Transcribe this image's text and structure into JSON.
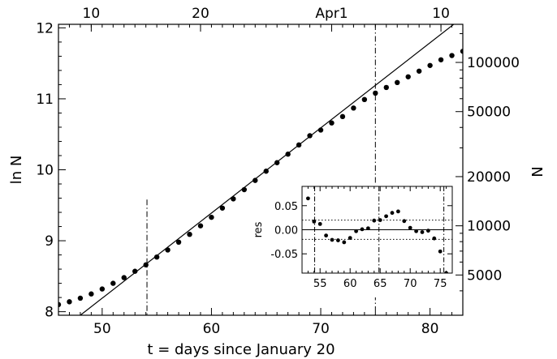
{
  "chart_data": [
    {
      "type": "scatter",
      "title": "",
      "xlabel": "t = days since January 20",
      "ylabel": "ln N",
      "right_ylabel": "N",
      "xlim": [
        46,
        83
      ],
      "ylim": [
        7.95,
        12.05
      ],
      "xticks": [
        50,
        60,
        70,
        80
      ],
      "yticks": [
        8,
        9,
        10,
        11,
        12
      ],
      "right_ticks": [
        {
          "label": "100000",
          "value": 100000
        },
        {
          "label": "50000",
          "value": 50000
        },
        {
          "label": "20000",
          "value": 20000
        },
        {
          "label": "10000",
          "value": 10000
        },
        {
          "label": "5000",
          "value": 5000
        }
      ],
      "top_ticks": [
        {
          "label": "10",
          "x": 49
        },
        {
          "label": "20",
          "x": 59
        },
        {
          "label": "Apr1",
          "x": 71
        },
        {
          "label": "10",
          "x": 81
        }
      ],
      "grid": false,
      "series": [
        {
          "type": "scatter",
          "x": [
            46,
            47,
            48,
            49,
            50,
            51,
            52,
            53,
            54,
            55,
            56,
            57,
            58,
            59,
            60,
            61,
            62,
            63,
            64,
            65,
            66,
            67,
            68,
            69,
            70,
            71,
            72,
            73,
            74,
            75,
            76,
            77,
            78,
            79,
            80,
            81,
            82,
            83
          ],
          "y": [
            8.1,
            8.14,
            8.19,
            8.25,
            8.32,
            8.4,
            8.48,
            8.57,
            8.66,
            8.77,
            8.87,
            8.98,
            9.09,
            9.21,
            9.33,
            9.46,
            9.59,
            9.72,
            9.85,
            9.98,
            10.1,
            10.22,
            10.35,
            10.48,
            10.56,
            10.66,
            10.75,
            10.87,
            10.99,
            11.08,
            11.16,
            11.23,
            11.31,
            11.39,
            11.47,
            11.55,
            11.61,
            11.67
          ]
        },
        {
          "type": "line",
          "x": [
            48,
            83
          ],
          "y": [
            7.95,
            12.15
          ]
        }
      ],
      "vlines": [
        54.1,
        75
      ]
    },
    {
      "type": "scatter",
      "title": "",
      "xlabel": "",
      "ylabel": "res",
      "xlim": [
        52,
        77
      ],
      "ylim": [
        -0.09,
        0.09
      ],
      "xticks": [
        55,
        60,
        65,
        70,
        75
      ],
      "ytick_labels": [
        "0.05",
        "0.00",
        "-0.05"
      ],
      "yticks": [
        0.05,
        0.0,
        -0.05
      ],
      "hlines_dotted": [
        0.02,
        -0.02
      ],
      "hline_solid": 0,
      "vlines": [
        54.1,
        64.8,
        75.6
      ],
      "series": [
        {
          "type": "scatter",
          "x": [
            53,
            54,
            55,
            56,
            57,
            58,
            59,
            60,
            61,
            62,
            63,
            64,
            65,
            66,
            67,
            68,
            69,
            70,
            71,
            72,
            73,
            74,
            75,
            76
          ],
          "y": [
            0.065,
            0.017,
            0.012,
            -0.012,
            -0.021,
            -0.022,
            -0.026,
            -0.017,
            -0.003,
            0.001,
            0.003,
            0.019,
            0.02,
            0.028,
            0.035,
            0.038,
            0.018,
            0.004,
            -0.003,
            -0.005,
            -0.002,
            -0.018,
            -0.045,
            -0.09
          ]
        }
      ]
    }
  ]
}
